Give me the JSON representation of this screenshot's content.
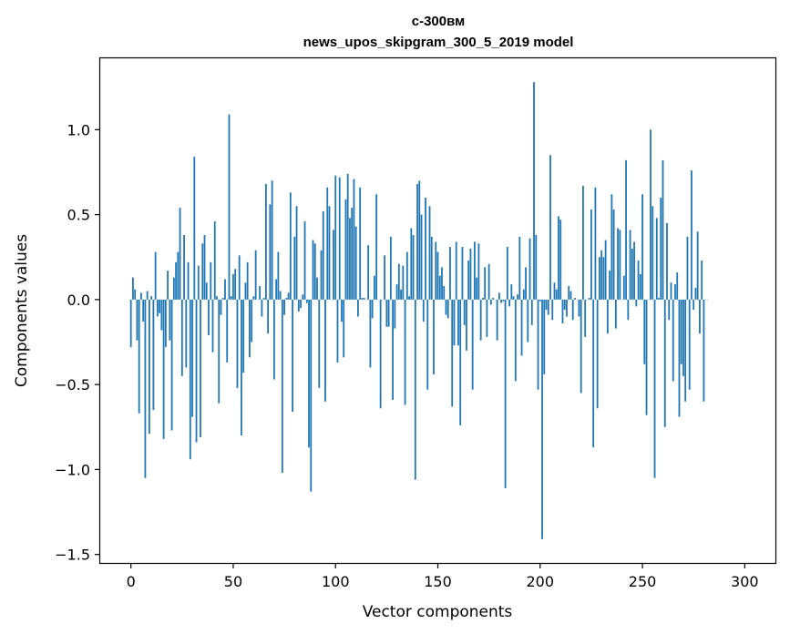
{
  "chart_data": {
    "type": "bar",
    "title": "с-300вм\nnews_upos_skipgram_300_5_2019 model",
    "title_lines": [
      "с-300вм",
      "news_upos_skipgram_300_5_2019 model"
    ],
    "xlabel": "Vector components",
    "ylabel": "Components values",
    "xlim": [
      -15,
      315
    ],
    "ylim": [
      -1.55,
      1.42
    ],
    "xticks": [
      0,
      50,
      100,
      150,
      200,
      250,
      300
    ],
    "xtick_labels": [
      "0",
      "50",
      "100",
      "150",
      "200",
      "250",
      "300"
    ],
    "yticks": [
      -1.5,
      -1.0,
      -0.5,
      0.0,
      0.5,
      1.0
    ],
    "ytick_labels": [
      "−1.5",
      "−1.0",
      "−0.5",
      "0.0",
      "0.5",
      "1.0"
    ],
    "grid": false,
    "bar_color": "#1f77b4",
    "series": [
      {
        "values": [
          -0.28,
          0.13,
          0.06,
          -0.24,
          -0.67,
          0.04,
          -0.13,
          -1.05,
          0.05,
          -0.79,
          0.02,
          -0.65,
          0.28,
          -0.1,
          -0.08,
          -0.18,
          -0.82,
          -0.28,
          0.17,
          -0.24,
          -0.77,
          0.13,
          0.22,
          0.28,
          0.54,
          -0.45,
          0.38,
          -0.4,
          0.22,
          -0.94,
          -0.69,
          0.84,
          -0.84,
          0.2,
          -0.81,
          0.33,
          0.38,
          0.1,
          -0.21,
          0.22,
          -0.31,
          0.46,
          0.02,
          -0.61,
          -0.09,
          0.01,
          0.12,
          -0.37,
          1.09,
          0.02,
          0.15,
          0.18,
          -0.52,
          0.26,
          -0.8,
          -0.43,
          0.1,
          0.22,
          -0.34,
          -0.25,
          0.02,
          0.29,
          0.0,
          0.08,
          -0.1,
          0.01,
          0.68,
          -0.2,
          0.56,
          0.7,
          -0.47,
          0.12,
          0.28,
          0.05,
          -1.02,
          -0.09,
          0.01,
          0.04,
          0.63,
          -0.66,
          0.37,
          0.55,
          -0.07,
          -0.05,
          0.03,
          0.46,
          -0.02,
          -0.87,
          -1.13,
          0.35,
          0.33,
          0.13,
          -0.52,
          0.29,
          0.52,
          -0.6,
          0.66,
          0.55,
          0.0,
          0.41,
          0.73,
          -0.37,
          0.72,
          -0.13,
          -0.34,
          0.59,
          0.74,
          0.48,
          0.54,
          0.71,
          0.43,
          -0.1,
          0.66,
          0.01,
          0.01,
          0.0,
          0.32,
          -0.4,
          -0.11,
          0.14,
          0.62,
          0.0,
          -0.64,
          0.0,
          0.26,
          -0.16,
          -0.16,
          0.37,
          -0.59,
          -0.17,
          0.09,
          0.21,
          0.06,
          0.2,
          -0.62,
          0.28,
          0.02,
          0.42,
          0.38,
          -1.06,
          0.68,
          0.7,
          0.5,
          -0.13,
          0.6,
          -0.53,
          0.55,
          0.37,
          -0.44,
          0.34,
          0.28,
          0.14,
          0.19,
          0.08,
          -0.09,
          -0.11,
          0.31,
          -0.63,
          -0.27,
          0.34,
          -0.27,
          -0.74,
          0.31,
          -0.15,
          -0.3,
          0.23,
          0.3,
          -0.53,
          0.34,
          0.13,
          0.33,
          -0.24,
          0.01,
          0.19,
          -0.22,
          0.21,
          -0.03,
          0.01,
          0.0,
          -0.24,
          0.04,
          -0.02,
          -0.01,
          -1.11,
          0.31,
          -0.04,
          0.09,
          0.02,
          -0.48,
          0.03,
          0.37,
          -0.33,
          0.06,
          0.19,
          -0.25,
          0.36,
          -0.15,
          1.28,
          0.38,
          -0.53,
          -0.01,
          -1.41,
          -0.44,
          -0.06,
          -0.09,
          0.85,
          -0.12,
          0.1,
          0.06,
          0.49,
          0.47,
          -0.14,
          -0.06,
          -0.1,
          0.08,
          0.05,
          -0.12,
          0.01,
          0.0,
          -0.1,
          -0.55,
          0.67,
          -0.22,
          0.0,
          0.01,
          0.53,
          -0.87,
          0.66,
          -0.64,
          0.25,
          0.29,
          0.25,
          0.35,
          -0.2,
          0.17,
          0.62,
          0.53,
          -0.17,
          0.42,
          0.41,
          0.0,
          0.14,
          0.82,
          -0.12,
          0.41,
          0.3,
          0.34,
          -0.04,
          0.23,
          0.15,
          0.62,
          -0.38,
          -0.68,
          0.0,
          1.0,
          0.55,
          -1.05,
          0.48,
          0.01,
          0.6,
          0.82,
          -0.75,
          0.45,
          -0.12,
          0.1,
          -0.48,
          0.09,
          0.16,
          -0.69,
          -0.38,
          -0.45,
          -0.6,
          0.37,
          -0.53,
          0.76,
          -0.06,
          0.07,
          0.4,
          -0.2,
          0.23,
          -0.6,
          0.0,
          0.0
        ]
      }
    ]
  }
}
